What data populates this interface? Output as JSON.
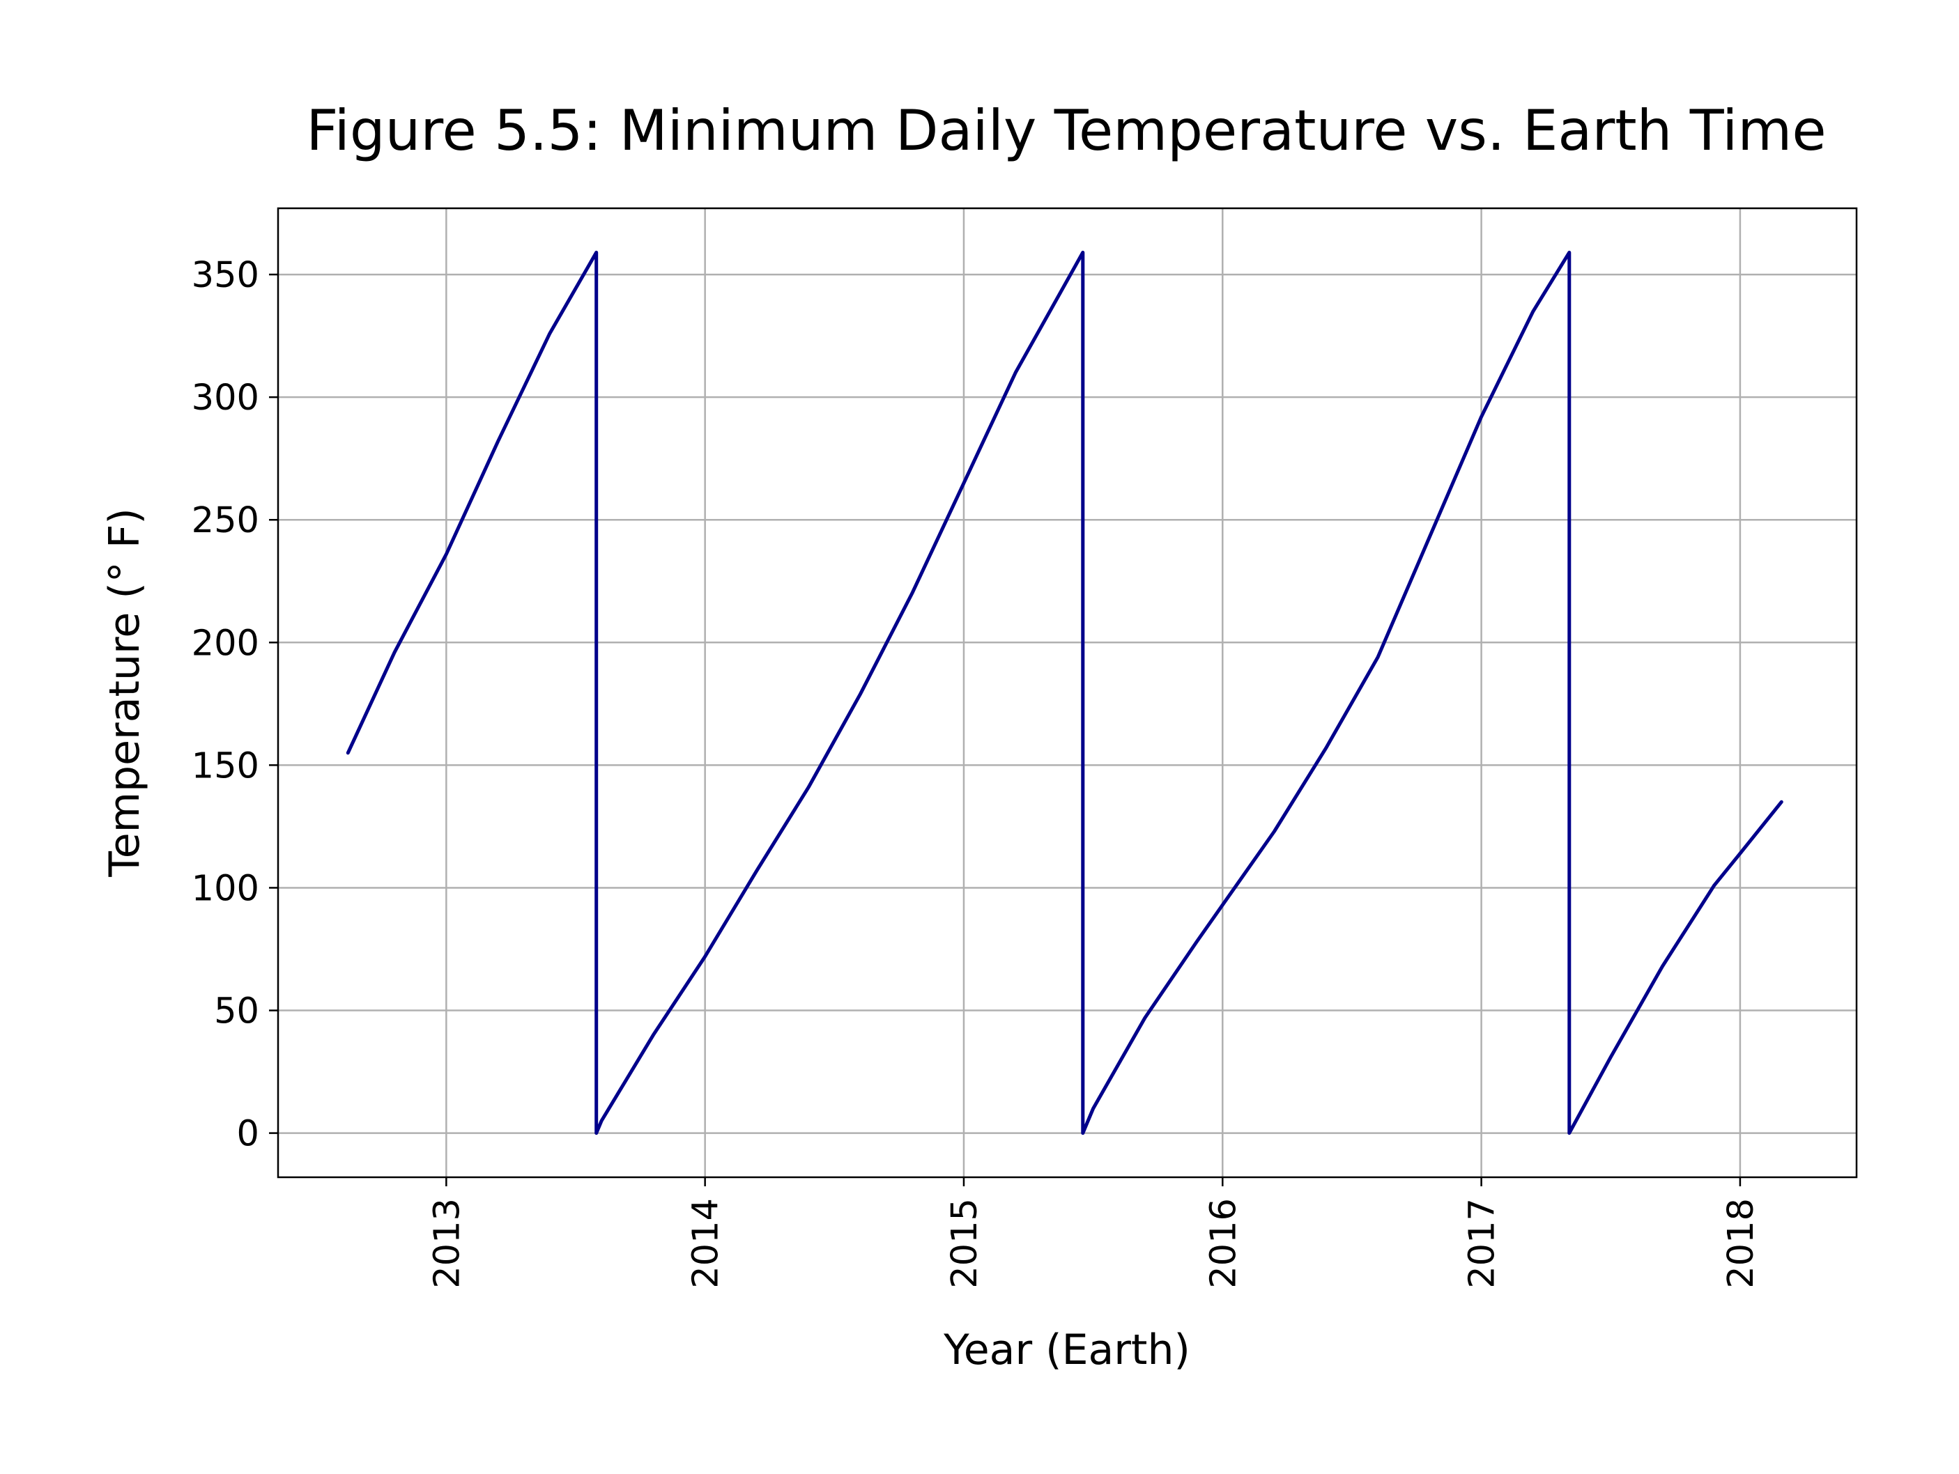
{
  "chart_data": {
    "type": "line",
    "title": "Figure 5.5: Minimum Daily Temperature vs. Earth Time",
    "xlabel": "Year (Earth)",
    "ylabel": "Temperature (° F)",
    "xlim": [
      2012.35,
      2018.45
    ],
    "ylim": [
      -18,
      377
    ],
    "x_ticks": [
      2013,
      2014,
      2015,
      2016,
      2017,
      2018
    ],
    "x_tick_labels": [
      "2013",
      "2014",
      "2015",
      "2016",
      "2017",
      "2018"
    ],
    "y_ticks": [
      0,
      50,
      100,
      150,
      200,
      250,
      300,
      350
    ],
    "y_tick_labels": [
      "0",
      "50",
      "100",
      "150",
      "200",
      "250",
      "300",
      "350"
    ],
    "grid": true,
    "legend": "none",
    "colors": {
      "line": "#00008b",
      "grid": "#b0b0b0",
      "axes": "#000000"
    },
    "series": [
      {
        "x": [
          2012.62,
          2012.8,
          2013.0,
          2013.2,
          2013.4,
          2013.58,
          2013.58,
          2013.6,
          2013.8,
          2014.0,
          2014.2,
          2014.4,
          2014.6,
          2014.8,
          2015.0,
          2015.2,
          2015.46,
          2015.46,
          2015.5,
          2015.7,
          2015.9,
          2016.0,
          2016.2,
          2016.4,
          2016.6,
          2016.8,
          2017.0,
          2017.2,
          2017.34,
          2017.34,
          2017.5,
          2017.7,
          2017.9,
          2018.0,
          2018.16
        ],
        "y": [
          155,
          196,
          236,
          282,
          326,
          359,
          0,
          5,
          40,
          72,
          107,
          141,
          179,
          220,
          265,
          310,
          359,
          0,
          10,
          47,
          78,
          93,
          123,
          157,
          194,
          243,
          292,
          335,
          359,
          0,
          31,
          68,
          101,
          114,
          135
        ]
      }
    ]
  }
}
